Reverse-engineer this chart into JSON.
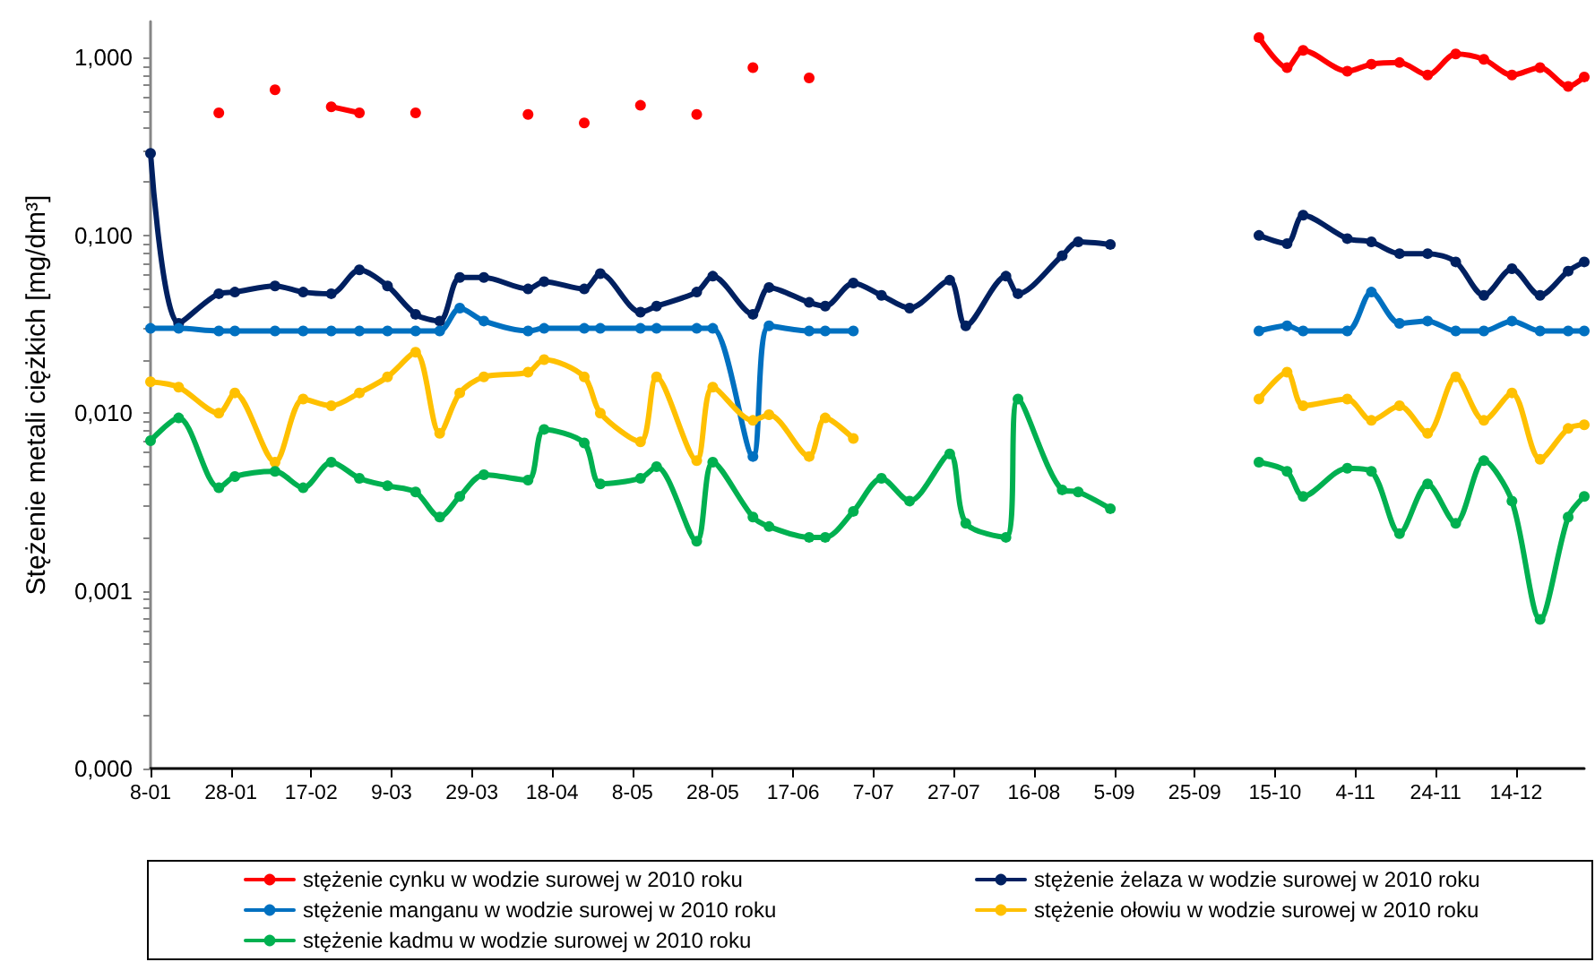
{
  "chart_data": {
    "type": "line",
    "ylabel": "Stężenie metali ciężkich [mg/dm³]",
    "x": [
      "--01-08",
      "--01-15",
      "--01-25",
      "--01-29",
      "--02-08",
      "--02-15",
      "--02-22",
      "--03-01",
      "--03-08",
      "--03-15",
      "--03-21",
      "--03-26",
      "--04-01",
      "--04-12",
      "--04-16",
      "--04-26",
      "--04-30",
      "--05-10",
      "--05-14",
      "--05-24",
      "--05-28",
      "--06-07",
      "--06-11",
      "--06-21",
      "--06-25",
      "--07-02",
      "--07-09",
      "--07-16",
      "--07-26",
      "--07-30",
      "--08-09",
      "--08-12",
      "--08-23",
      "--08-27",
      "--09-04",
      "--09-24",
      "--10-11",
      "--10-18",
      "--10-22",
      "--11-02",
      "--11-08",
      "--11-15",
      "--11-22",
      "--11-29",
      "--12-06",
      "--12-13",
      "--12-20",
      "--12-27",
      "--12-31"
    ],
    "xlim": [
      "--01-08",
      "--12-31"
    ],
    "xticks": [
      {
        "value": "--01-08",
        "label": "8-01"
      },
      {
        "value": "--01-28",
        "label": "28-01"
      },
      {
        "value": "--02-17",
        "label": "17-02"
      },
      {
        "value": "--03-09",
        "label": "9-03"
      },
      {
        "value": "--03-29",
        "label": "29-03"
      },
      {
        "value": "--04-18",
        "label": "18-04"
      },
      {
        "value": "--05-08",
        "label": "8-05"
      },
      {
        "value": "--05-28",
        "label": "28-05"
      },
      {
        "value": "--06-17",
        "label": "17-06"
      },
      {
        "value": "--07-07",
        "label": "7-07"
      },
      {
        "value": "--07-27",
        "label": "27-07"
      },
      {
        "value": "--08-16",
        "label": "16-08"
      },
      {
        "value": "--09-05",
        "label": "5-09"
      },
      {
        "value": "--09-25",
        "label": "25-09"
      },
      {
        "value": "--10-15",
        "label": "15-10"
      },
      {
        "value": "--11-04",
        "label": "4-11"
      },
      {
        "value": "--11-24",
        "label": "24-11"
      },
      {
        "value": "--12-14",
        "label": "14-12"
      }
    ],
    "ylim": [
      0.0001,
      1.6
    ],
    "yticks": [
      {
        "value": 0.0001,
        "label": "0,000"
      },
      {
        "value": 0.0002,
        "label": null
      },
      {
        "value": 0.0003,
        "label": null
      },
      {
        "value": 0.0004,
        "label": null
      },
      {
        "value": 0.0005,
        "label": null
      },
      {
        "value": 0.0006,
        "label": null
      },
      {
        "value": 0.0007,
        "label": null
      },
      {
        "value": 0.0008,
        "label": null
      },
      {
        "value": 0.0009,
        "label": null
      },
      {
        "value": 0.001,
        "label": "0,001"
      },
      {
        "value": 0.002,
        "label": null
      },
      {
        "value": 0.003,
        "label": null
      },
      {
        "value": 0.004,
        "label": null
      },
      {
        "value": 0.005,
        "label": null
      },
      {
        "value": 0.006,
        "label": null
      },
      {
        "value": 0.007,
        "label": null
      },
      {
        "value": 0.008,
        "label": null
      },
      {
        "value": 0.009,
        "label": null
      },
      {
        "value": 0.01,
        "label": "0,010"
      },
      {
        "value": 0.02,
        "label": null
      },
      {
        "value": 0.03,
        "label": null
      },
      {
        "value": 0.04,
        "label": null
      },
      {
        "value": 0.05,
        "label": null
      },
      {
        "value": 0.06,
        "label": null
      },
      {
        "value": 0.07,
        "label": null
      },
      {
        "value": 0.08,
        "label": null
      },
      {
        "value": 0.09,
        "label": null
      },
      {
        "value": 0.1,
        "label": "0,100"
      },
      {
        "value": 0.2,
        "label": null
      },
      {
        "value": 0.3,
        "label": null
      },
      {
        "value": 0.4,
        "label": null
      },
      {
        "value": 0.5,
        "label": null
      },
      {
        "value": 0.6,
        "label": null
      },
      {
        "value": 0.7,
        "label": null
      },
      {
        "value": 0.8,
        "label": null
      },
      {
        "value": 0.9,
        "label": null
      },
      {
        "value": 1,
        "label": "1,000"
      }
    ],
    "log": "y",
    "grid": false,
    "legend": "bottom",
    "marker": "circle",
    "line_style": "solid",
    "series": [
      {
        "name": "stężenie cynku w wodzie surowej w 2010 roku",
        "color": "#ff0000",
        "values": [
          null,
          null,
          0.49,
          null,
          0.66,
          null,
          0.53,
          0.49,
          null,
          0.49,
          null,
          null,
          null,
          0.48,
          null,
          0.43,
          null,
          0.54,
          null,
          0.48,
          null,
          0.88,
          null,
          0.77,
          null,
          null,
          null,
          null,
          null,
          null,
          null,
          null,
          null,
          null,
          null,
          null,
          1.3,
          0.88,
          1.1,
          0.84,
          0.92,
          0.94,
          0.8,
          1.05,
          0.98,
          0.8,
          0.88,
          0.69,
          0.78
        ]
      },
      {
        "name": "stężenie żelaza w wodzie surowej w 2010 roku",
        "color": "#002060",
        "values": [
          0.29,
          0.032,
          0.047,
          0.048,
          0.052,
          0.048,
          0.047,
          0.064,
          0.052,
          0.036,
          0.033,
          0.058,
          0.058,
          0.05,
          0.055,
          0.05,
          0.061,
          0.037,
          0.04,
          0.048,
          0.059,
          0.036,
          0.051,
          0.042,
          0.04,
          0.054,
          0.046,
          0.039,
          0.056,
          0.031,
          0.059,
          0.047,
          0.077,
          0.092,
          0.089,
          null,
          0.1,
          0.09,
          0.13,
          0.096,
          0.092,
          0.079,
          0.079,
          0.071,
          0.046,
          0.065,
          0.046,
          0.063,
          0.071
        ]
      },
      {
        "name": "stężenie manganu w wodzie surowej w 2010 roku",
        "color": "#0070c0",
        "values": [
          0.03,
          0.03,
          0.029,
          0.029,
          0.029,
          0.029,
          0.029,
          0.029,
          0.029,
          0.029,
          0.029,
          0.039,
          0.033,
          0.029,
          0.03,
          0.03,
          0.03,
          0.03,
          0.03,
          0.03,
          0.03,
          0.0057,
          0.031,
          0.029,
          0.029,
          0.029,
          null,
          null,
          null,
          null,
          null,
          null,
          null,
          null,
          null,
          null,
          0.029,
          0.031,
          0.029,
          0.029,
          0.048,
          0.032,
          0.033,
          0.029,
          0.029,
          0.033,
          0.029,
          0.029,
          0.029
        ]
      },
      {
        "name": "stężenie ołowiu w wodzie surowej w 2010 roku",
        "color": "#ffc000",
        "values": [
          0.015,
          0.014,
          0.01,
          0.013,
          0.0053,
          0.012,
          0.011,
          0.013,
          0.016,
          0.022,
          0.0077,
          0.013,
          0.016,
          0.017,
          0.02,
          0.016,
          0.01,
          0.0069,
          0.016,
          0.0054,
          0.014,
          0.0091,
          0.0098,
          0.0057,
          0.0094,
          0.0072,
          null,
          null,
          null,
          null,
          null,
          null,
          null,
          null,
          null,
          null,
          0.012,
          0.017,
          0.011,
          0.012,
          0.0091,
          0.011,
          0.0077,
          0.016,
          0.0091,
          0.013,
          0.0055,
          0.0082,
          0.0086
        ]
      },
      {
        "name": "stężenie kadmu w wodzie surowej w 2010 roku",
        "color": "#00b050",
        "values": [
          0.007,
          0.0094,
          0.0038,
          0.0044,
          0.0047,
          0.0038,
          0.0053,
          0.0043,
          0.0039,
          0.0036,
          0.0026,
          0.0034,
          0.0045,
          0.0042,
          0.0081,
          0.0068,
          0.004,
          0.0043,
          0.005,
          0.0019,
          0.0053,
          0.0026,
          0.0023,
          0.002,
          0.002,
          0.0028,
          0.0043,
          0.0032,
          0.0059,
          0.0024,
          0.002,
          0.012,
          0.0037,
          0.0036,
          0.0029,
          null,
          0.0053,
          0.0047,
          0.0034,
          0.0049,
          0.0047,
          0.0021,
          0.004,
          0.0024,
          0.0054,
          0.0032,
          0.00069,
          0.0026,
          0.0034
        ]
      }
    ]
  }
}
